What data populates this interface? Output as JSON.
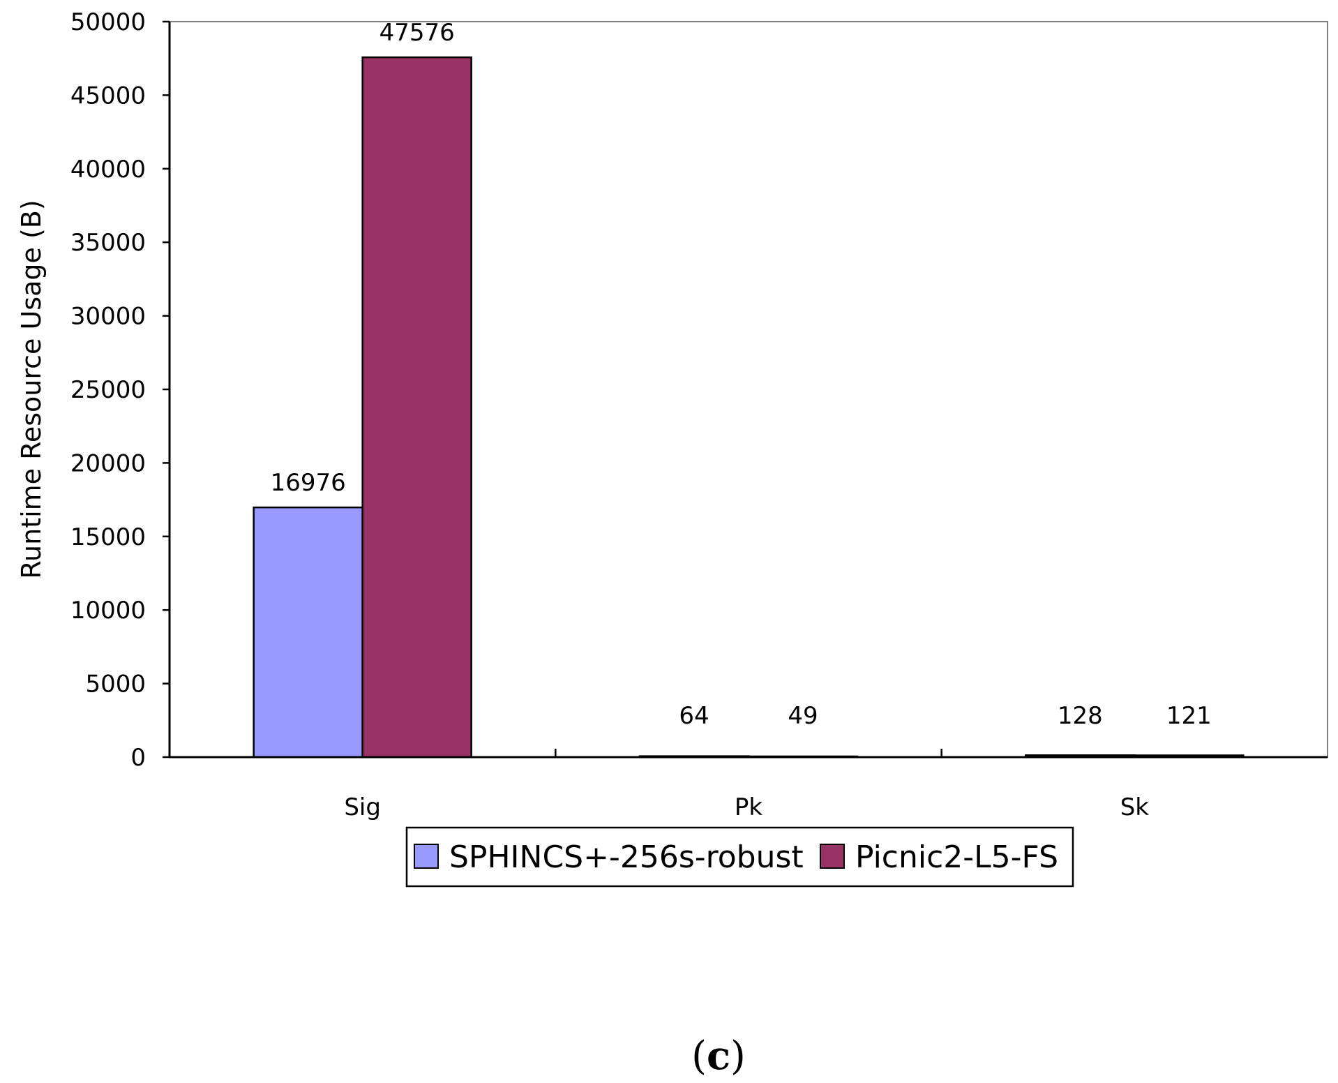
{
  "chart_data": {
    "type": "bar",
    "categories": [
      "Sig",
      "Pk",
      "Sk"
    ],
    "series": [
      {
        "name": "SPHINCS+-256s-robust",
        "values": [
          16976,
          64,
          128
        ],
        "labels": [
          "16976",
          "64",
          "128"
        ],
        "color": "#9999FF"
      },
      {
        "name": "Picnic2-L5-FS",
        "values": [
          47576,
          49,
          121
        ],
        "labels": [
          "47576",
          "49",
          "121"
        ],
        "color": "#993366"
      }
    ],
    "ylabel": "Runtime Resource Usage (B)",
    "ylim": [
      0,
      50000
    ],
    "yticks": [
      "0",
      "5000",
      "10000",
      "15000",
      "20000",
      "25000",
      "30000",
      "35000",
      "40000",
      "45000",
      "50000"
    ],
    "grid": false,
    "legend_position": "bottom"
  },
  "caption": {
    "open": "(",
    "letter": "c",
    "close": ")"
  }
}
